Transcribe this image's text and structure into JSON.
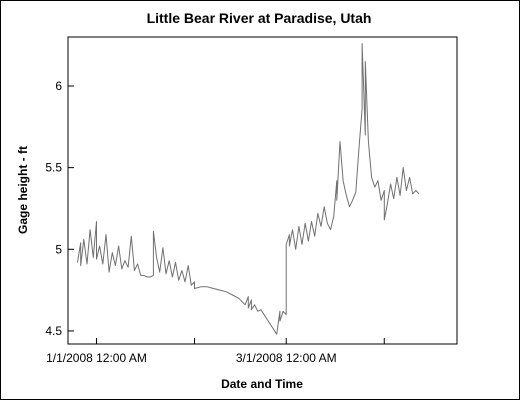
{
  "chart_data": {
    "type": "line",
    "title": "Little Bear River at Paradise, Utah",
    "xlabel": "Date and Time",
    "ylabel": "Gage height - ft",
    "x_range": [
      "2007-12-23",
      "2008-04-24"
    ],
    "ylim": [
      4.42,
      6.3
    ],
    "y_ticks": [
      4.5,
      5,
      5.5,
      6
    ],
    "x_ticks": [
      {
        "value": "2008-01-01",
        "label": "1/1/2008 12:00 AM"
      },
      {
        "value": "2008-02-01",
        "label": ""
      },
      {
        "value": "2008-03-01",
        "label": "3/1/2008 12:00 AM"
      },
      {
        "value": "2008-04-01",
        "label": ""
      }
    ],
    "grid": false,
    "line_color": "#707070",
    "series": [
      {
        "name": "",
        "points": [
          [
            "2007-12-26",
            4.92
          ],
          [
            "2007-12-27",
            5.04
          ],
          [
            "2007-12-27",
            4.9
          ],
          [
            "2007-12-28",
            5.06
          ],
          [
            "2007-12-29",
            4.91
          ],
          [
            "2007-12-30",
            5.12
          ],
          [
            "2007-12-31",
            4.95
          ],
          [
            "2008-01-01",
            5.17
          ],
          [
            "2008-01-01",
            4.94
          ],
          [
            "2008-01-02",
            5.02
          ],
          [
            "2008-01-03",
            4.91
          ],
          [
            "2008-01-04",
            5.09
          ],
          [
            "2008-01-05",
            4.86
          ],
          [
            "2008-01-06",
            4.98
          ],
          [
            "2008-01-07",
            4.9
          ],
          [
            "2008-01-08",
            5.02
          ],
          [
            "2008-01-09",
            4.88
          ],
          [
            "2008-01-10",
            4.93
          ],
          [
            "2008-01-11",
            4.89
          ],
          [
            "2008-01-12",
            5.08
          ],
          [
            "2008-01-13",
            4.87
          ],
          [
            "2008-01-14",
            4.91
          ],
          [
            "2008-01-15",
            4.84
          ],
          [
            "2008-01-16",
            4.84
          ],
          [
            "2008-01-17",
            4.83
          ],
          [
            "2008-01-18",
            4.83
          ],
          [
            "2008-01-19",
            4.84
          ],
          [
            "2008-01-19",
            5.11
          ],
          [
            "2008-01-20",
            4.95
          ],
          [
            "2008-01-21",
            4.86
          ],
          [
            "2008-01-22",
            5.01
          ],
          [
            "2008-01-23",
            4.85
          ],
          [
            "2008-01-24",
            4.93
          ],
          [
            "2008-01-25",
            4.83
          ],
          [
            "2008-01-26",
            4.92
          ],
          [
            "2008-01-27",
            4.81
          ],
          [
            "2008-01-28",
            4.87
          ],
          [
            "2008-01-29",
            4.8
          ],
          [
            "2008-01-30",
            4.9
          ],
          [
            "2008-01-31",
            4.78
          ],
          [
            "2008-02-01",
            4.8
          ],
          [
            "2008-02-01",
            4.76
          ],
          [
            "2008-02-03",
            4.77
          ],
          [
            "2008-02-05",
            4.77
          ],
          [
            "2008-02-07",
            4.76
          ],
          [
            "2008-02-09",
            4.75
          ],
          [
            "2008-02-11",
            4.74
          ],
          [
            "2008-02-13",
            4.72
          ],
          [
            "2008-02-15",
            4.7
          ],
          [
            "2008-02-17",
            4.66
          ],
          [
            "2008-02-18",
            4.71
          ],
          [
            "2008-02-18",
            4.64
          ],
          [
            "2008-02-19",
            4.69
          ],
          [
            "2008-02-19",
            4.63
          ],
          [
            "2008-02-20",
            4.66
          ],
          [
            "2008-02-21",
            4.62
          ],
          [
            "2008-02-22",
            4.63
          ],
          [
            "2008-02-24",
            4.57
          ],
          [
            "2008-02-26",
            4.51
          ],
          [
            "2008-02-27",
            4.48
          ],
          [
            "2008-02-28",
            4.62
          ],
          [
            "2008-02-28",
            4.56
          ],
          [
            "2008-02-29",
            4.62
          ],
          [
            "2008-03-01",
            4.6
          ],
          [
            "2008-03-01",
            5.03
          ],
          [
            "2008-03-02",
            5.09
          ],
          [
            "2008-03-02",
            5.02
          ],
          [
            "2008-03-03",
            5.12
          ],
          [
            "2008-03-04",
            5.0
          ],
          [
            "2008-03-05",
            5.14
          ],
          [
            "2008-03-06",
            5.03
          ],
          [
            "2008-03-07",
            5.16
          ],
          [
            "2008-03-08",
            5.05
          ],
          [
            "2008-03-09",
            5.17
          ],
          [
            "2008-03-10",
            5.08
          ],
          [
            "2008-03-11",
            5.22
          ],
          [
            "2008-03-12",
            5.14
          ],
          [
            "2008-03-13",
            5.26
          ],
          [
            "2008-03-14",
            5.16
          ],
          [
            "2008-03-15",
            5.12
          ],
          [
            "2008-03-16",
            5.2
          ],
          [
            "2008-03-17",
            5.42
          ],
          [
            "2008-03-17",
            5.3
          ],
          [
            "2008-03-18",
            5.66
          ],
          [
            "2008-03-19",
            5.42
          ],
          [
            "2008-03-20",
            5.33
          ],
          [
            "2008-03-21",
            5.26
          ],
          [
            "2008-03-22",
            5.3
          ],
          [
            "2008-03-23",
            5.35
          ],
          [
            "2008-03-24",
            5.62
          ],
          [
            "2008-03-25",
            5.86
          ],
          [
            "2008-03-25",
            6.26
          ],
          [
            "2008-03-26",
            5.7
          ],
          [
            "2008-03-26",
            6.15
          ],
          [
            "2008-03-27",
            5.66
          ],
          [
            "2008-03-28",
            5.44
          ],
          [
            "2008-03-29",
            5.38
          ],
          [
            "2008-03-30",
            5.42
          ],
          [
            "2008-03-31",
            5.3
          ],
          [
            "2008-04-01",
            5.36
          ],
          [
            "2008-04-01",
            5.18
          ],
          [
            "2008-04-02",
            5.28
          ],
          [
            "2008-04-03",
            5.4
          ],
          [
            "2008-04-04",
            5.31
          ],
          [
            "2008-04-05",
            5.44
          ],
          [
            "2008-04-06",
            5.33
          ],
          [
            "2008-04-07",
            5.5
          ],
          [
            "2008-04-08",
            5.36
          ],
          [
            "2008-04-09",
            5.44
          ],
          [
            "2008-04-10",
            5.34
          ],
          [
            "2008-04-11",
            5.36
          ],
          [
            "2008-04-12",
            5.34
          ]
        ]
      }
    ]
  }
}
